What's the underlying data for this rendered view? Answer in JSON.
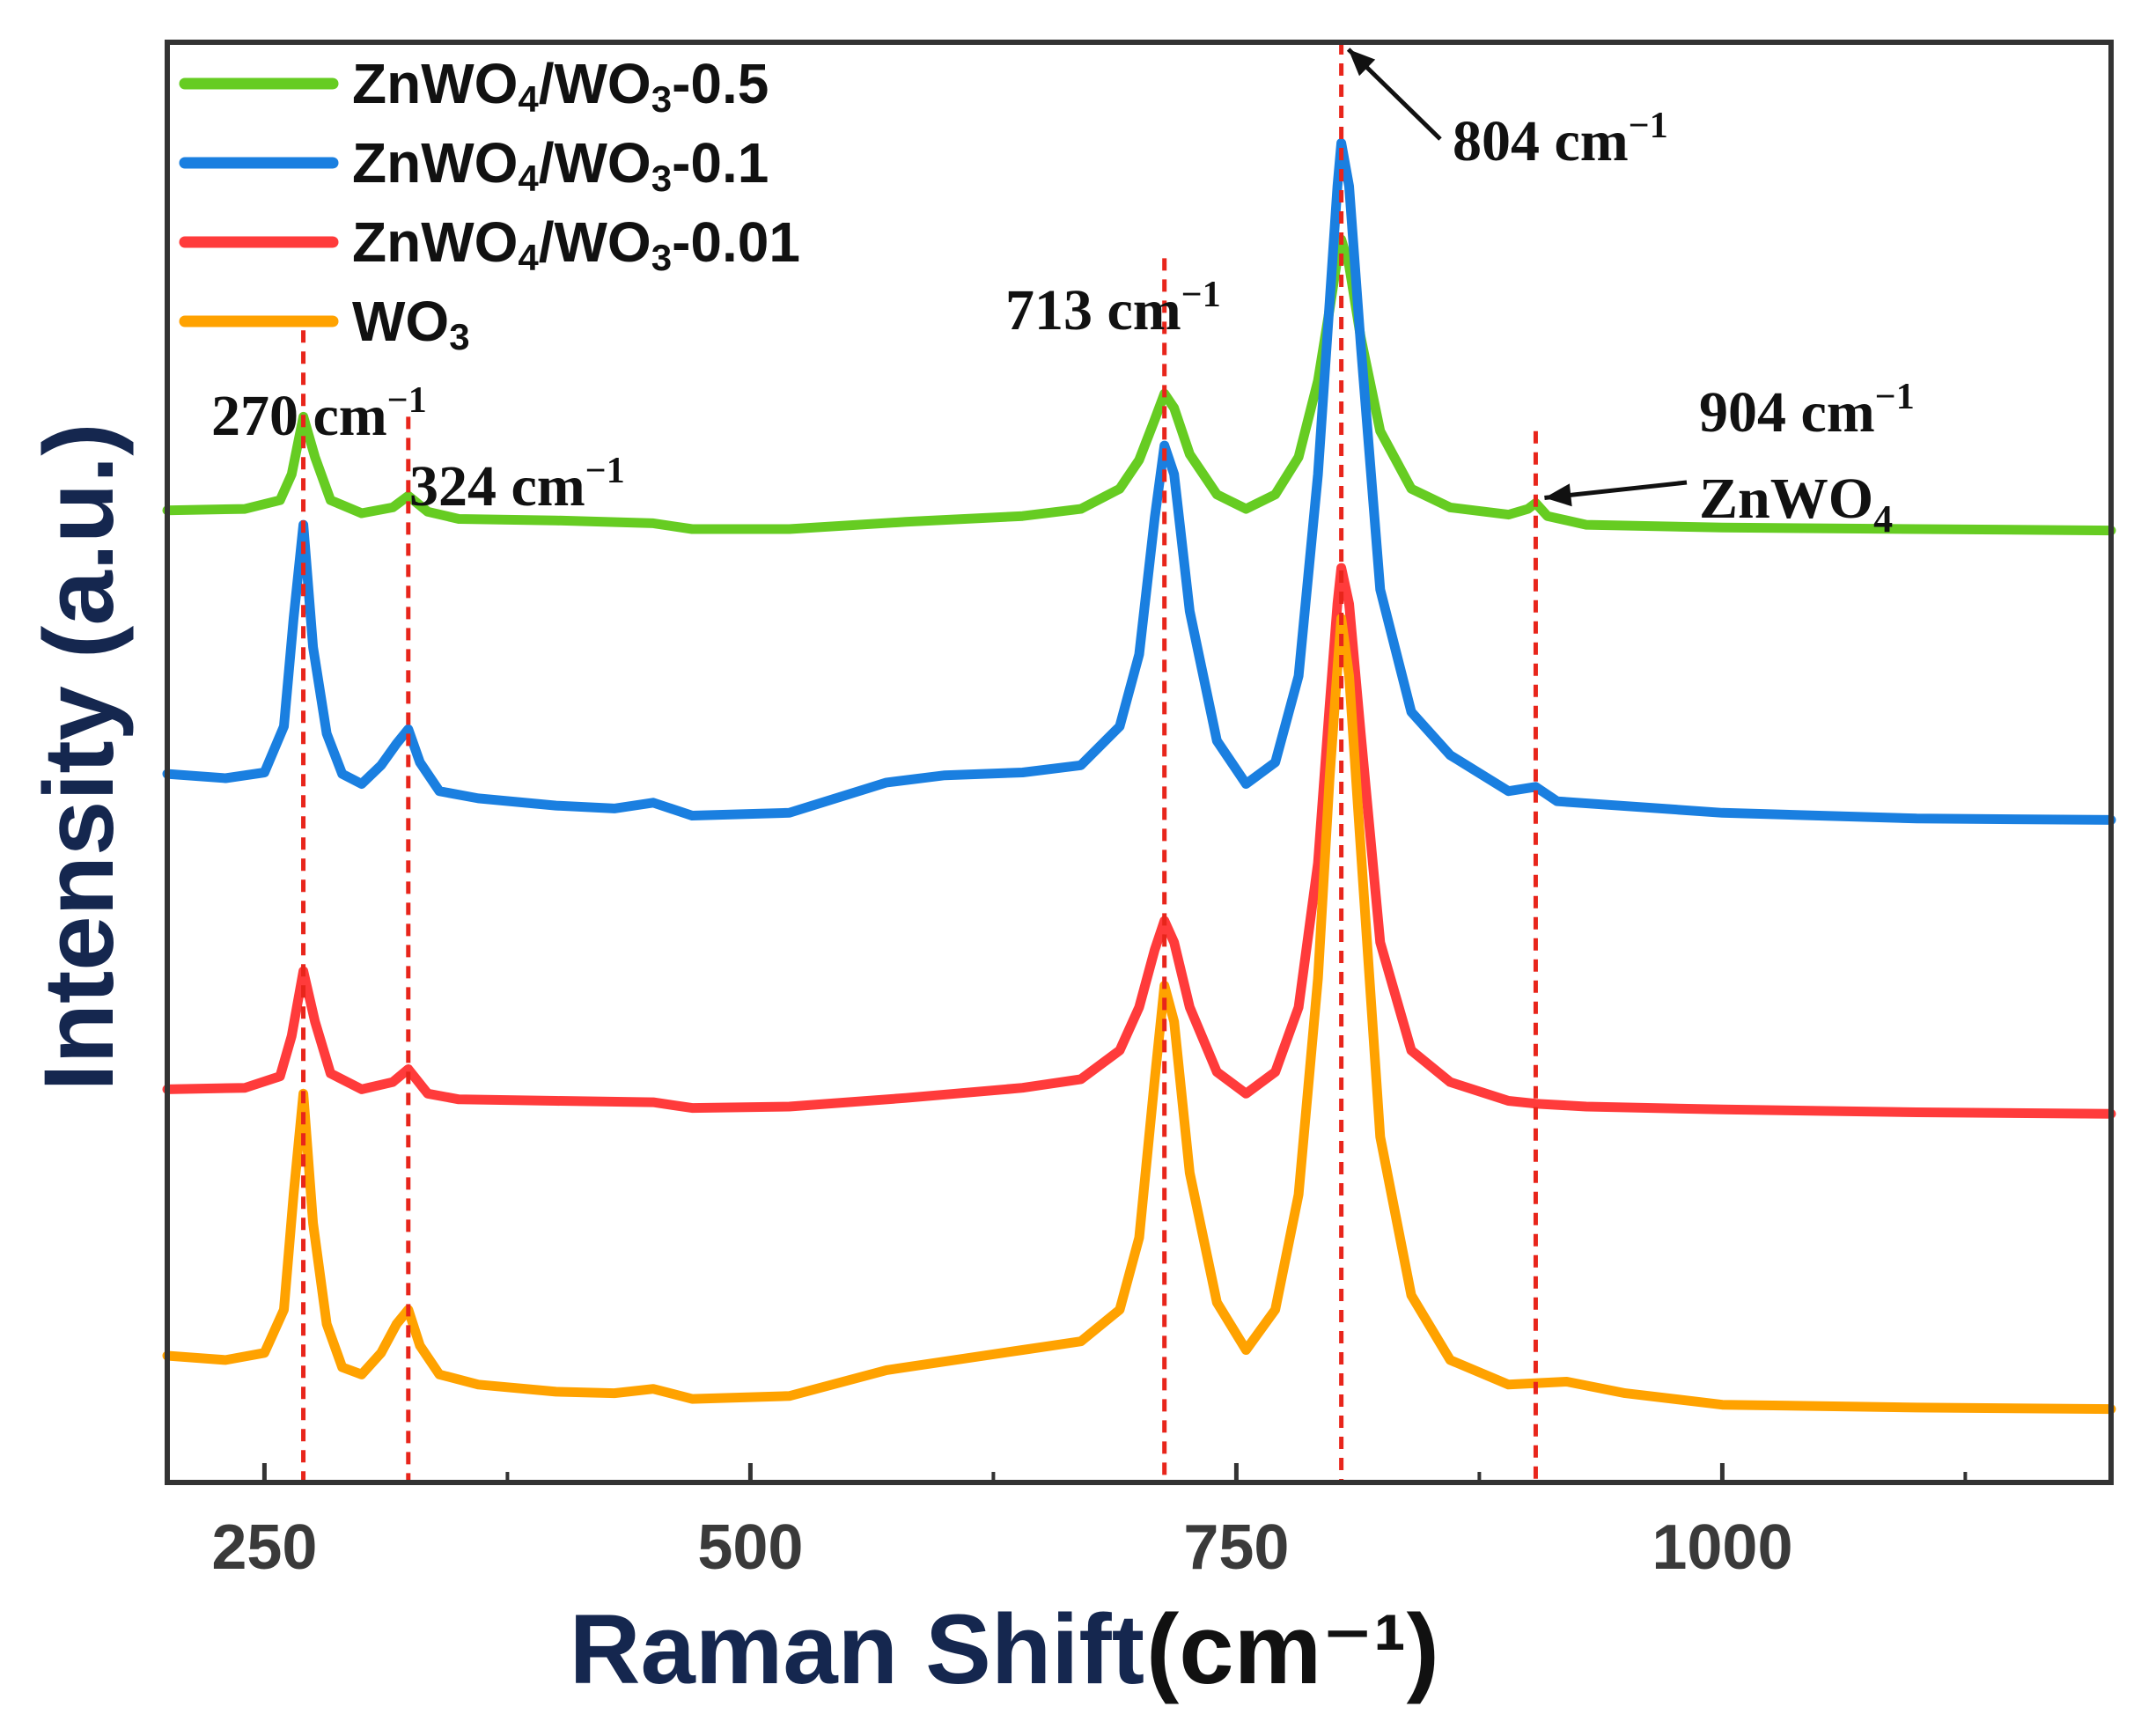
{
  "chart_data": {
    "type": "line",
    "xlabel": "Raman Shift",
    "xlabel_unit": "(cm⁻¹)",
    "ylabel": "Intensity (a.u.)",
    "xlim": [
      200,
      1200
    ],
    "ylim": [
      0,
      100
    ],
    "x_ticks": [
      250,
      500,
      750,
      1000
    ],
    "x_tick_labels": [
      "250",
      "500",
      "750",
      "1000"
    ],
    "x_minor_ticks": [
      375,
      625,
      875,
      1125
    ],
    "y_ticks_shown": false,
    "grid": false,
    "legend_position": "top-left",
    "colors": {
      "green": "#66cc22",
      "blue": "#1a7fe0",
      "red": "#ff3b3b",
      "orange": "#ffa200",
      "ref_line": "#e8251b",
      "axis": "#333333"
    },
    "series": [
      {
        "name": "ZnWO4/WO3-0.5",
        "legend_main": "ZnWO",
        "legend_sub1": "4",
        "legend_mid": "/WO",
        "legend_sub2": "3",
        "legend_tail": "-0.5",
        "color": "#66cc22",
        "x": [
          200,
          240,
          258,
          264,
          270,
          276,
          284,
          300,
          316,
          324,
          334,
          350,
          400,
          450,
          470,
          520,
          580,
          640,
          670,
          690,
          700,
          708,
          713,
          718,
          726,
          740,
          755,
          770,
          782,
          792,
          798,
          802,
          804,
          808,
          814,
          824,
          840,
          860,
          890,
          900,
          904,
          910,
          930,
          1000,
          1100,
          1200
        ],
        "y": [
          67.5,
          67.6,
          68.2,
          70.0,
          74.0,
          71.2,
          68.2,
          67.3,
          67.7,
          68.5,
          67.4,
          66.9,
          66.8,
          66.6,
          66.2,
          66.2,
          66.7,
          67.1,
          67.6,
          69.0,
          71.0,
          73.8,
          75.6,
          74.6,
          71.4,
          68.6,
          67.6,
          68.6,
          71.2,
          76.5,
          81.5,
          85.0,
          86.3,
          84.5,
          79.5,
          73.0,
          69.0,
          67.7,
          67.2,
          67.6,
          68.0,
          67.1,
          66.5,
          66.3,
          66.2,
          66.1
        ]
      },
      {
        "name": "ZnWO4/WO3-0.1",
        "legend_main": "ZnWO",
        "legend_sub1": "4",
        "legend_mid": "/WO",
        "legend_sub2": "3",
        "legend_tail": "-0.1",
        "color": "#1a7fe0",
        "x": [
          200,
          230,
          250,
          260,
          265,
          270,
          275,
          282,
          290,
          300,
          310,
          318,
          324,
          330,
          340,
          360,
          400,
          430,
          450,
          470,
          520,
          570,
          600,
          640,
          670,
          690,
          700,
          708,
          713,
          718,
          726,
          740,
          755,
          770,
          782,
          792,
          798,
          802,
          804,
          808,
          814,
          824,
          840,
          860,
          890,
          904,
          915,
          1000,
          1100,
          1200
        ],
        "y": [
          49.2,
          48.9,
          49.3,
          52.5,
          60.0,
          66.5,
          58.0,
          52.0,
          49.2,
          48.5,
          49.8,
          51.3,
          52.3,
          50.0,
          48.0,
          47.5,
          47.0,
          46.8,
          47.2,
          46.3,
          46.5,
          48.6,
          49.1,
          49.3,
          49.8,
          52.5,
          57.5,
          67.0,
          72.0,
          70.0,
          60.5,
          51.5,
          48.5,
          50.0,
          56.0,
          70.0,
          82.0,
          90.0,
          93.0,
          90.0,
          79.0,
          62.0,
          53.5,
          50.5,
          48.0,
          48.3,
          47.3,
          46.5,
          46.1,
          46.0
        ]
      },
      {
        "name": "ZnWO4/WO3-0.01",
        "legend_main": "ZnWO",
        "legend_sub1": "4",
        "legend_mid": "/WO",
        "legend_sub2": "3",
        "legend_tail": "-0.01",
        "color": "#ff3b3b",
        "x": [
          200,
          240,
          258,
          264,
          270,
          276,
          284,
          300,
          316,
          324,
          334,
          350,
          400,
          450,
          470,
          520,
          580,
          640,
          670,
          690,
          700,
          708,
          713,
          718,
          726,
          740,
          755,
          770,
          782,
          792,
          798,
          802,
          804,
          808,
          814,
          824,
          840,
          860,
          890,
          904,
          930,
          1000,
          1100,
          1200
        ],
        "y": [
          27.3,
          27.4,
          28.2,
          31.0,
          35.5,
          32.0,
          28.4,
          27.3,
          27.8,
          28.7,
          27.0,
          26.6,
          26.5,
          26.4,
          26.0,
          26.1,
          26.7,
          27.4,
          28.0,
          30.0,
          33.0,
          37.0,
          39.0,
          37.5,
          33.0,
          28.5,
          27.0,
          28.5,
          33.0,
          43.0,
          54.0,
          61.0,
          63.5,
          61.0,
          52.0,
          37.5,
          30.0,
          27.8,
          26.5,
          26.3,
          26.1,
          25.9,
          25.7,
          25.6
        ]
      },
      {
        "name": "WO3",
        "legend_main": "WO",
        "legend_sub1": "3",
        "legend_mid": "",
        "legend_sub2": "",
        "legend_tail": "",
        "color": "#ffa200",
        "x": [
          200,
          230,
          250,
          260,
          265,
          270,
          275,
          282,
          290,
          300,
          310,
          318,
          324,
          330,
          340,
          360,
          400,
          430,
          450,
          470,
          520,
          570,
          600,
          640,
          670,
          690,
          700,
          708,
          713,
          718,
          726,
          740,
          755,
          770,
          782,
          792,
          798,
          802,
          804,
          808,
          814,
          824,
          840,
          860,
          890,
          920,
          950,
          1000,
          1100,
          1200
        ],
        "y": [
          8.8,
          8.5,
          9.0,
          12.0,
          20.0,
          27.0,
          18.0,
          11.0,
          8.0,
          7.5,
          9.0,
          11.0,
          12.0,
          9.5,
          7.5,
          6.8,
          6.3,
          6.2,
          6.5,
          5.8,
          6.0,
          7.8,
          8.4,
          9.2,
          9.8,
          12.0,
          17.0,
          28.0,
          34.5,
          32.0,
          21.5,
          12.5,
          9.2,
          12.0,
          20.0,
          35.0,
          49.0,
          56.5,
          60.0,
          56.0,
          44.0,
          24.0,
          13.0,
          8.5,
          6.8,
          7.0,
          6.2,
          5.4,
          5.2,
          5.1
        ]
      }
    ],
    "reference_lines": [
      {
        "x": 270,
        "y_top": 80,
        "label": "270 cm",
        "label_sup": "−1"
      },
      {
        "x": 324,
        "y_top": 74,
        "label": "324 cm",
        "label_sup": "−1"
      },
      {
        "x": 713,
        "y_top": 85,
        "label": "713 cm",
        "label_sup": "−1"
      },
      {
        "x": 804,
        "y_top": 100,
        "label": "804 cm",
        "label_sup": "−1"
      },
      {
        "x": 904,
        "y_top": 73,
        "label": "904 cm",
        "label_sup": "−1",
        "sub_label": "ZnWO",
        "sub_label_sub": "4"
      }
    ]
  }
}
